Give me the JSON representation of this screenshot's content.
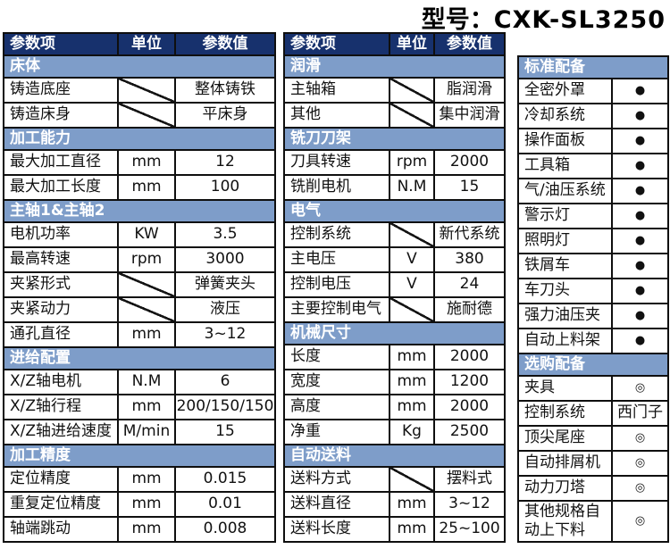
{
  "title": {
    "label": "型号：",
    "model": "CXK-SL3250"
  },
  "colors": {
    "header_bg": "#17316d",
    "section_bg": "#7e9dc9",
    "border": "#0f0f0f",
    "bullet_standard": "●",
    "bullet_optional": "◎"
  },
  "tables": {
    "left": {
      "headers": [
        "参数项",
        "单位",
        "参数值"
      ],
      "sections": [
        {
          "name": "床体",
          "rows": [
            {
              "param": "铸造底座",
              "unit": null,
              "slash": true,
              "value": "整体铸铁"
            },
            {
              "param": "铸造床身",
              "unit": null,
              "slash": true,
              "value": "平床身"
            }
          ]
        },
        {
          "name": "加工能力",
          "rows": [
            {
              "param": "最大加工直径",
              "unit": "mm",
              "value": "12"
            },
            {
              "param": "最大加工长度",
              "unit": "mm",
              "value": "100"
            }
          ]
        },
        {
          "name": "主轴1&主轴2",
          "rows": [
            {
              "param": "电机功率",
              "unit": "KW",
              "value": "3.5"
            },
            {
              "param": "最高转速",
              "unit": "rpm",
              "value": "3000"
            },
            {
              "param": "夹紧形式",
              "unit": null,
              "slash": true,
              "value": "弹簧夹头"
            },
            {
              "param": "夹紧动力",
              "unit": null,
              "slash": true,
              "value": "液压"
            },
            {
              "param": "通孔直径",
              "unit": "mm",
              "value": "3~12"
            }
          ]
        },
        {
          "name": "进给配置",
          "rows": [
            {
              "param": "X/Z轴电机",
              "unit": "N.M",
              "value": "6"
            },
            {
              "param": "X/Z轴行程",
              "unit": "mm",
              "value": "200/150/150"
            },
            {
              "param": "X/Z轴进给速度",
              "unit": "M/min",
              "value": "15"
            }
          ]
        },
        {
          "name": "加工精度",
          "rows": [
            {
              "param": "定位精度",
              "unit": "mm",
              "value": "0.015"
            },
            {
              "param": "重复定位精度",
              "unit": "mm",
              "value": "0.01"
            },
            {
              "param": "轴端跳动",
              "unit": "mm",
              "value": "0.008"
            }
          ]
        }
      ]
    },
    "middle": {
      "headers": [
        "参数项",
        "单位",
        "参数值"
      ],
      "sections": [
        {
          "name": "润滑",
          "rows": [
            {
              "param": "主轴箱",
              "unit": null,
              "slash": true,
              "value": "脂润滑"
            },
            {
              "param": "其他",
              "unit": null,
              "slash": true,
              "value": "集中润滑"
            }
          ]
        },
        {
          "name": "铣刀刀架",
          "rows": [
            {
              "param": "刀具转速",
              "unit": "rpm",
              "value": "2000"
            },
            {
              "param": "铣削电机",
              "unit": "N.M",
              "value": "15"
            }
          ]
        },
        {
          "name": "电气",
          "rows": [
            {
              "param": "控制系统",
              "unit": null,
              "slash": true,
              "value": "新代系统"
            },
            {
              "param": "主电压",
              "unit": "V",
              "value": "380"
            },
            {
              "param": "控制电压",
              "unit": "V",
              "value": "24"
            },
            {
              "param": "主要控制电气",
              "unit": null,
              "slash": true,
              "value": "施耐德"
            }
          ]
        },
        {
          "name": "机械尺寸",
          "rows": [
            {
              "param": "长度",
              "unit": "mm",
              "value": "2000"
            },
            {
              "param": "宽度",
              "unit": "mm",
              "value": "1200"
            },
            {
              "param": "高度",
              "unit": "mm",
              "value": "2000"
            },
            {
              "param": "净重",
              "unit": "Kg",
              "value": "2500"
            }
          ]
        },
        {
          "name": "自动送料",
          "rows": [
            {
              "param": "送料方式",
              "unit": null,
              "slash": true,
              "value": "摆料式"
            },
            {
              "param": "送料直径",
              "unit": "mm",
              "value": "3~12"
            },
            {
              "param": "送料长度",
              "unit": "mm",
              "value": "25~100"
            }
          ]
        }
      ]
    },
    "right": {
      "sections": [
        {
          "name": "标准配备",
          "rows": [
            {
              "item": "全密外罩",
              "mark": "●"
            },
            {
              "item": "冷却系统",
              "mark": "●"
            },
            {
              "item": "操作面板",
              "mark": "●"
            },
            {
              "item": "工具箱",
              "mark": "●"
            },
            {
              "item": "气/油压系统",
              "mark": "●"
            },
            {
              "item": "警示灯",
              "mark": "●"
            },
            {
              "item": "照明灯",
              "mark": "●"
            },
            {
              "item": "铁屑车",
              "mark": "●"
            },
            {
              "item": "车刀头",
              "mark": "●"
            },
            {
              "item": "强力油压夹",
              "mark": "●"
            },
            {
              "item": "自动上料架",
              "mark": "●"
            }
          ]
        },
        {
          "name": "选购配备",
          "rows": [
            {
              "item": "夹具",
              "mark": "◎"
            },
            {
              "item": "控制系统",
              "mark": "西门子"
            },
            {
              "item": "顶尖尾座",
              "mark": "◎"
            },
            {
              "item": "自动排屑机",
              "mark": "◎"
            },
            {
              "item": "动力刀塔",
              "mark": "◎"
            },
            {
              "item": "其他规格自动上下料",
              "mark": "◎",
              "tall": true
            }
          ]
        }
      ]
    }
  }
}
